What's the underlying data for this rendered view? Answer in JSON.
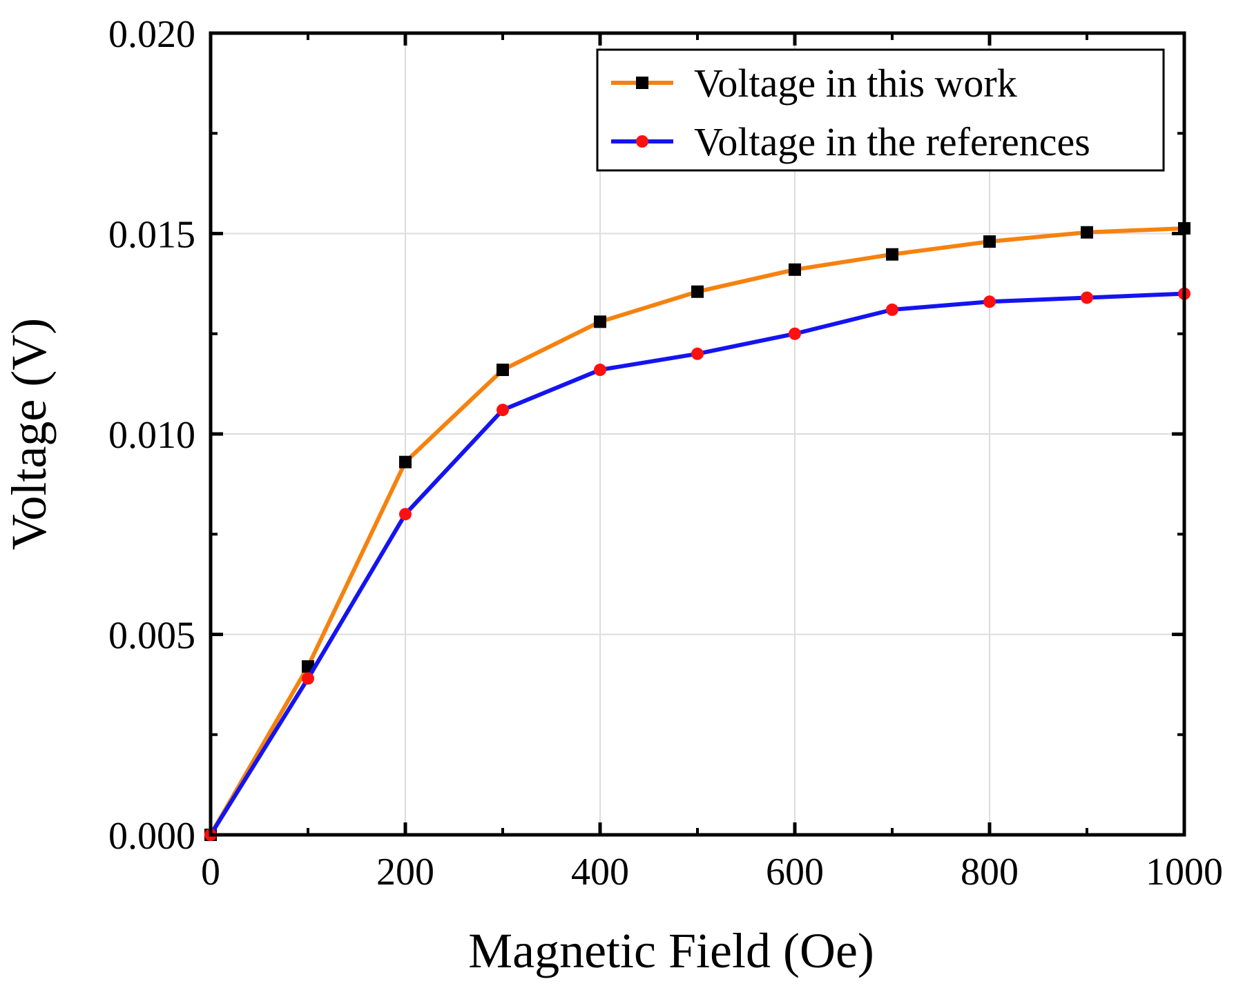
{
  "chart_data": {
    "type": "line",
    "xlabel": "Magnetic Field (Oe)",
    "ylabel": "Voltage (V)",
    "xlim": [
      0,
      1000
    ],
    "ylim": [
      0,
      0.02
    ],
    "xticks": [
      "0",
      "200",
      "400",
      "600",
      "800",
      "1000"
    ],
    "yticks": [
      "0.000",
      "0.005",
      "0.010",
      "0.015",
      "0.020"
    ],
    "grid": true,
    "legend_position": "top-right",
    "x": [
      0,
      100,
      200,
      300,
      400,
      500,
      600,
      700,
      800,
      900,
      1000
    ],
    "series": [
      {
        "name": "Voltage in this work",
        "line_color": "#F5820F",
        "marker": "square",
        "marker_color": "#000000",
        "values": [
          0.0,
          0.0042,
          0.0093,
          0.0116,
          0.0128,
          0.01355,
          0.0141,
          0.01448,
          0.0148,
          0.01503,
          0.01513
        ]
      },
      {
        "name": "Voltage in the references",
        "line_color": "#1414F0",
        "marker": "circle",
        "marker_color": "#FF1010",
        "values": [
          0.0,
          0.0039,
          0.008,
          0.0106,
          0.0116,
          0.012,
          0.0125,
          0.0131,
          0.0133,
          0.0134,
          0.0135
        ]
      }
    ]
  }
}
